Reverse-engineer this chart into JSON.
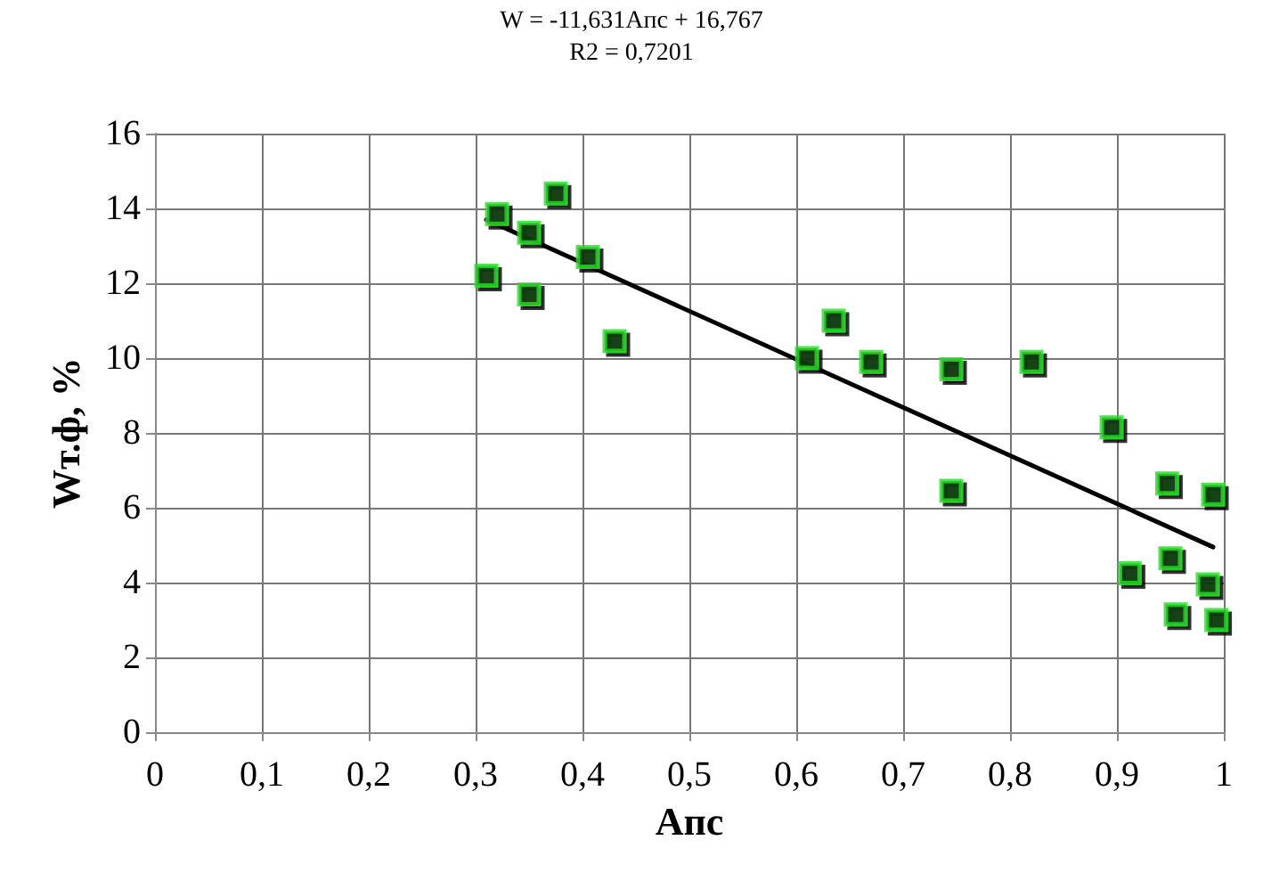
{
  "chart_data": {
    "type": "scatter",
    "title": "W = -11,631Апс + 16,767",
    "subtitle": "R2 = 0,7201",
    "xlabel": "Апс",
    "ylabel": "Wт.ф, %",
    "xlim": [
      0,
      1
    ],
    "xticks": [
      0,
      {
        "value": 0.1,
        "label": "0,1"
      },
      {
        "value": 0.2,
        "label": "0,2"
      },
      {
        "value": 0.3,
        "label": "0,3"
      },
      {
        "value": 0.4,
        "label": "0,4"
      },
      {
        "value": 0.5,
        "label": "0,5"
      },
      {
        "value": 0.6,
        "label": "0,6"
      },
      {
        "value": 0.7,
        "label": "0,7"
      },
      {
        "value": 0.8,
        "label": "0,8"
      },
      {
        "value": 0.9,
        "label": "0,9"
      },
      1
    ],
    "ylim": [
      0,
      16
    ],
    "yticks": [
      0,
      2,
      4,
      6,
      8,
      10,
      12,
      14,
      16
    ],
    "grid": true,
    "marker": "square",
    "series": [
      {
        "color": "#22e022",
        "x": [
          0.31,
          0.32,
          0.35,
          0.35,
          0.375,
          0.405,
          0.43,
          0.61,
          0.635,
          0.67,
          0.745,
          0.745,
          0.82,
          0.895,
          0.912,
          0.947,
          0.95,
          0.955,
          0.985,
          0.99,
          0.993
        ],
        "values": [
          12.2,
          13.85,
          13.35,
          11.7,
          14.4,
          12.7,
          10.45,
          10.0,
          11.0,
          9.9,
          9.7,
          6.45,
          9.9,
          8.15,
          4.25,
          6.65,
          4.65,
          3.15,
          3.95,
          6.35,
          3.0
        ]
      },
      {
        "type": "line",
        "color": "#000000",
        "marker": "none",
        "x": [
          0.31,
          0.99
        ],
        "values": [
          13.7,
          4.95
        ]
      }
    ]
  }
}
